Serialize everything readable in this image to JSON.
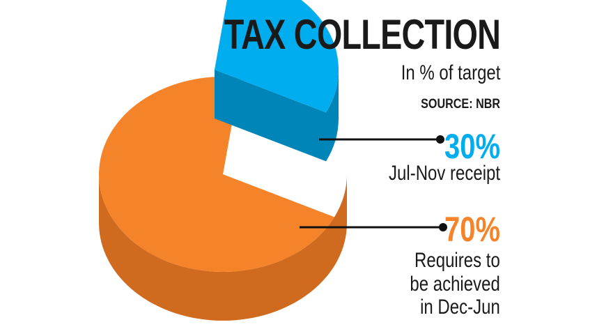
{
  "chart_data": {
    "type": "pie",
    "title": "TAX COLLECTION",
    "subtitle": "In % of target",
    "source": "SOURCE: NBR",
    "slices": [
      {
        "value": 30,
        "value_label": "30%",
        "label": "Jul-Nov receipt",
        "color": "#00adef",
        "side_color": "#0085b8",
        "exploded": true
      },
      {
        "value": 70,
        "value_label": "70%",
        "label": "Requires to be achieved in Dec-Jun",
        "label_lines": [
          "Requires to",
          "be achieved",
          "in Dec-Jun"
        ],
        "color": "#f5832a",
        "side_color": "#d06a1f",
        "exploded": false
      }
    ]
  }
}
